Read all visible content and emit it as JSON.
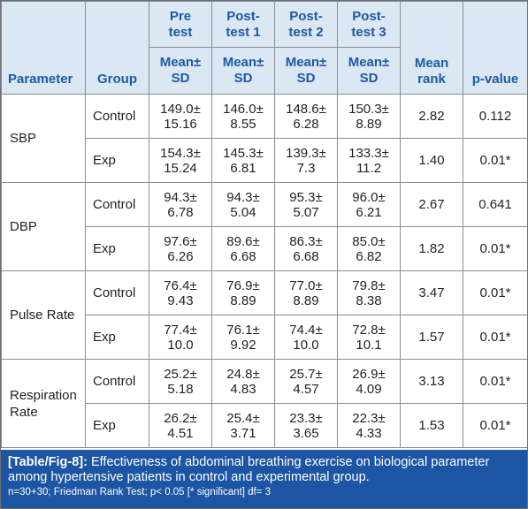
{
  "table": {
    "headers": {
      "parameter": "Parameter",
      "group": "Group",
      "pretest": [
        "Pre",
        "test"
      ],
      "posttest1": [
        "Post-",
        "test 1"
      ],
      "posttest2": [
        "Post-",
        "test 2"
      ],
      "posttest3": [
        "Post-",
        "test 3"
      ],
      "mean_sd": [
        "Mean±",
        "SD"
      ],
      "mean_rank": [
        "Mean",
        "rank"
      ],
      "p_value": "p-value"
    },
    "parameters": [
      {
        "name": [
          "SBP"
        ],
        "rows": [
          {
            "group": "Control",
            "values": [
              [
                "149.0±",
                "15.16"
              ],
              [
                "146.0±",
                "8.55"
              ],
              [
                "148.6±",
                "6.28"
              ],
              [
                "150.3±",
                "8.89"
              ]
            ],
            "mean_rank": "2.82",
            "p_value": "0.112"
          },
          {
            "group": "Exp",
            "values": [
              [
                "154.3±",
                "15.24"
              ],
              [
                "145.3±",
                "6.81"
              ],
              [
                "139.3±",
                "7.3"
              ],
              [
                "133.3±",
                "11.2"
              ]
            ],
            "mean_rank": "1.40",
            "p_value": "0.01*"
          }
        ]
      },
      {
        "name": [
          "DBP"
        ],
        "rows": [
          {
            "group": "Control",
            "values": [
              [
                "94.3±",
                "6.78"
              ],
              [
                "94.3±",
                "5.04"
              ],
              [
                "95.3±",
                "5.07"
              ],
              [
                "96.0±",
                "6.21"
              ]
            ],
            "mean_rank": "2.67",
            "p_value": "0.641"
          },
          {
            "group": "Exp",
            "values": [
              [
                "97.6±",
                "6.26"
              ],
              [
                "89.6±",
                "6.68"
              ],
              [
                "86.3±",
                "6.68"
              ],
              [
                "85.0±",
                "6.82"
              ]
            ],
            "mean_rank": "1.82",
            "p_value": "0.01*"
          }
        ]
      },
      {
        "name": [
          "Pulse Rate"
        ],
        "rows": [
          {
            "group": "Control",
            "values": [
              [
                "76.4±",
                "9.43"
              ],
              [
                "76.9±",
                "8.89"
              ],
              [
                "77.0±",
                "8.89"
              ],
              [
                "79.8±",
                "8.38"
              ]
            ],
            "mean_rank": "3.47",
            "p_value": "0.01*"
          },
          {
            "group": "Exp",
            "values": [
              [
                "77.4±",
                "10.0"
              ],
              [
                "76.1±",
                "9.92"
              ],
              [
                "74.4±",
                "10.0"
              ],
              [
                "72.8±",
                "10.1"
              ]
            ],
            "mean_rank": "1.57",
            "p_value": "0.01*"
          }
        ]
      },
      {
        "name": [
          "Respiration",
          "Rate"
        ],
        "rows": [
          {
            "group": "Control",
            "values": [
              [
                "25.2±",
                "5.18"
              ],
              [
                "24.8±",
                "4.83"
              ],
              [
                "25.7±",
                "4.57"
              ],
              [
                "26.9±",
                "4.09"
              ]
            ],
            "mean_rank": "3.13",
            "p_value": "0.01*"
          },
          {
            "group": "Exp",
            "values": [
              [
                "26.2±",
                "4.51"
              ],
              [
                "25.4±",
                "3.71"
              ],
              [
                "23.3±",
                "3.65"
              ],
              [
                "22.3±",
                "4.33"
              ]
            ],
            "mean_rank": "1.53",
            "p_value": "0.01*"
          }
        ]
      }
    ]
  },
  "caption": {
    "label": "[Table/Fig-8]:",
    "text": " Effectiveness of abdominal breathing exercise on biological parameter among hypertensive patients in control and experimental group.",
    "note": "n=30+30; Friedman Rank Test; p< 0.05 [* significant] df= 3"
  },
  "colors": {
    "header_bg": "#dce7f4",
    "header_text": "#1c5aa5",
    "caption_bg": "#1c55a3",
    "border": "#8a8c8f"
  }
}
